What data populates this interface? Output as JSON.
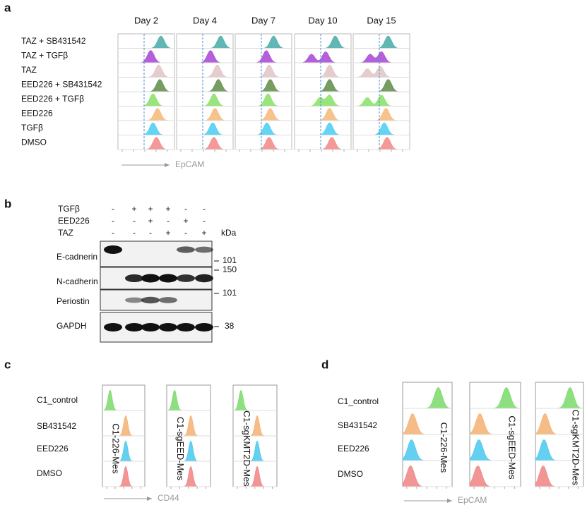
{
  "panels": {
    "a": {
      "label": "a",
      "days": [
        "Day 2",
        "Day 4",
        "Day 7",
        "Day 10",
        "Day 15"
      ],
      "rows": [
        {
          "name": "TAZ + SB431542",
          "color": "#45aaa6"
        },
        {
          "name": "TAZ + TGFβ",
          "color": "#a844d4"
        },
        {
          "name": "TAZ",
          "color": "#e2c4c4"
        },
        {
          "name": "EED226 + SB431542",
          "color": "#5e8c46"
        },
        {
          "name": "EED226 + TGFβ",
          "color": "#86e066"
        },
        {
          "name": "EED226",
          "color": "#f4b878"
        },
        {
          "name": "TGFβ",
          "color": "#48ccf2"
        },
        {
          "name": "DMSO",
          "color": "#f28686"
        }
      ],
      "axis": "EpCAM"
    },
    "b": {
      "label": "b",
      "treatments": [
        {
          "name": "TGFβ",
          "signs": [
            "-",
            "+",
            "+",
            "+",
            "-",
            "-"
          ]
        },
        {
          "name": "EED226",
          "signs": [
            "-",
            "-",
            "+",
            "-",
            "+",
            "-"
          ]
        },
        {
          "name": "TAZ",
          "signs": [
            "-",
            "-",
            "-",
            "+",
            "-",
            "+"
          ]
        }
      ],
      "unit": "kDa",
      "proteins": [
        {
          "name": "E-cadnerin",
          "marker": 101
        },
        {
          "name": "N-cadherin",
          "marker": 150
        },
        {
          "name": "Periostin",
          "marker": 101
        },
        {
          "name": "GAPDH",
          "marker": 38
        }
      ]
    },
    "c": {
      "label": "c",
      "rows": [
        "C1_control",
        "SB431542",
        "EED226",
        "DMSO"
      ],
      "columns": [
        "C1-226-Mes",
        "C1-sgEED-Mes",
        "C1-sgKMT2D-Mes"
      ],
      "axis": "CD44"
    },
    "d": {
      "label": "d",
      "rows": [
        "C1_control",
        "SB431542",
        "EED226",
        "DMSO"
      ],
      "columns": [
        "C1-226-Mes",
        "C1-sgEED-Mes",
        "C1-sgKMT2D-Mes"
      ],
      "axis": "EpCAM"
    }
  }
}
